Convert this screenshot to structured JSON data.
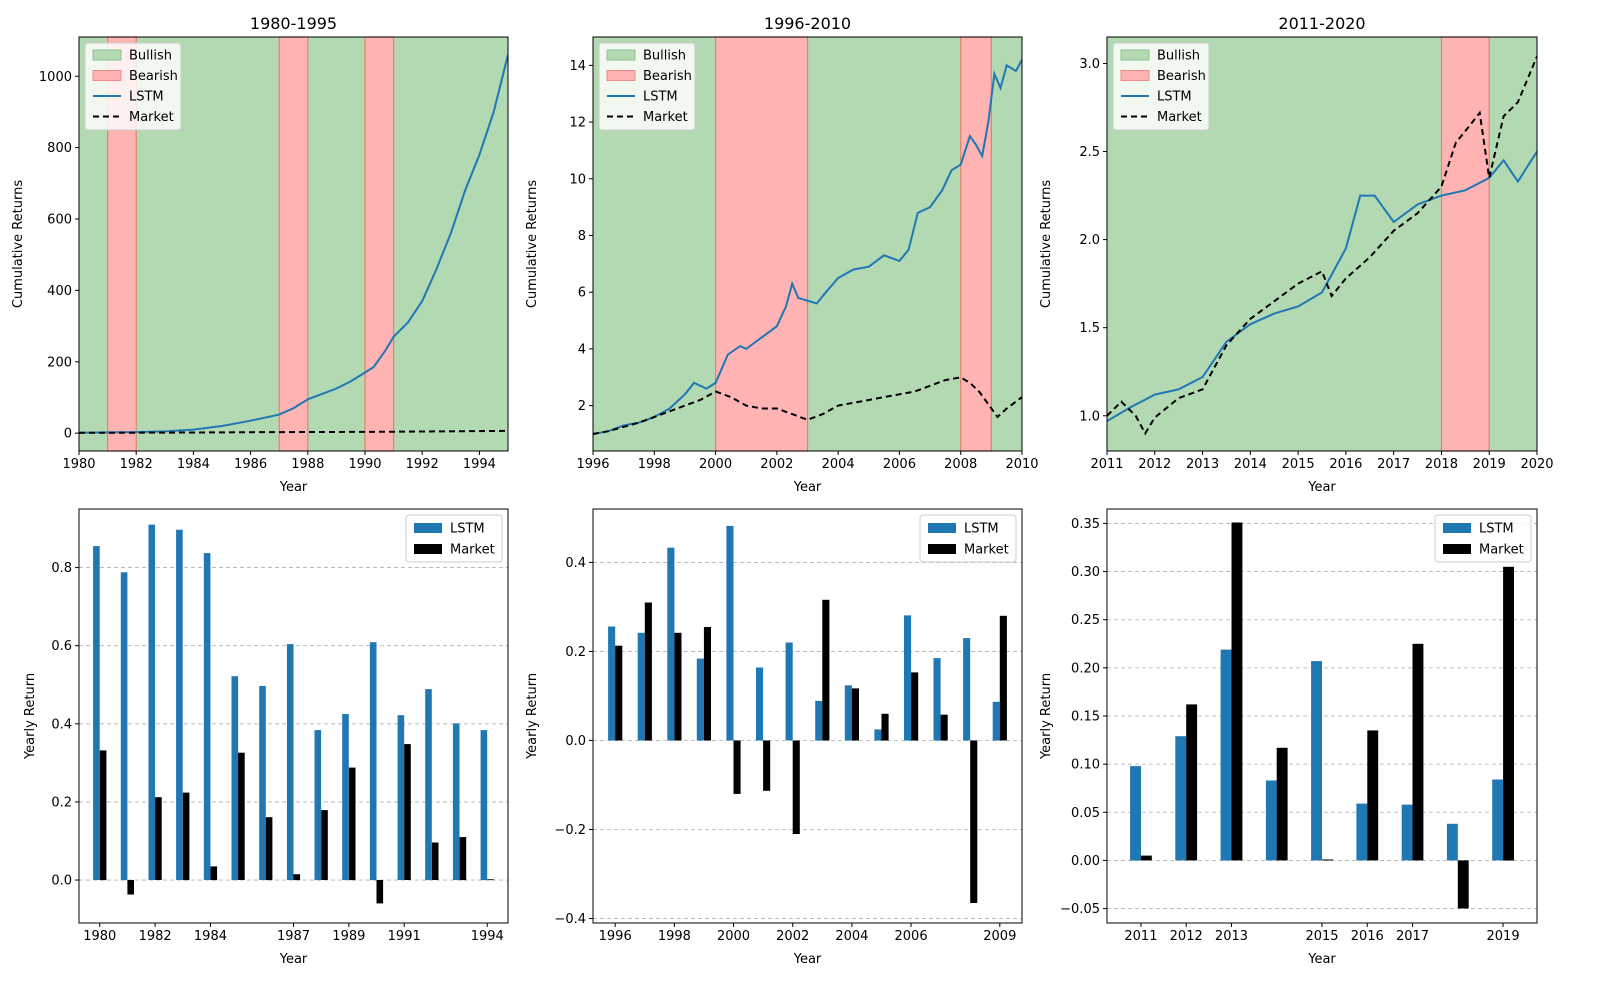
{
  "chart_data": [
    {
      "type": "line",
      "title": "1980-1995",
      "xlabel": "Year",
      "ylabel": "Cumulative Returns",
      "xlim": [
        1980,
        1995
      ],
      "ylim": [
        -50,
        1110
      ],
      "xticks": [
        1980,
        1982,
        1984,
        1986,
        1988,
        1990,
        1992,
        1994
      ],
      "yticks": [
        0,
        200,
        400,
        600,
        800,
        1000
      ],
      "legend": {
        "position": "top-left",
        "entries": [
          "Bullish",
          "Bearish",
          "LSTM",
          "Market"
        ]
      },
      "regimes": {
        "bullish": [
          [
            1980,
            1981
          ],
          [
            1982,
            1987
          ],
          [
            1988,
            1990
          ],
          [
            1991,
            1995
          ]
        ],
        "bearish": [
          [
            1981,
            1982
          ],
          [
            1987,
            1988
          ],
          [
            1990,
            1991
          ]
        ]
      },
      "colors": {
        "bullish": "#b3d9b3",
        "bearish": "#ffb3b3",
        "lstm": "#1f77b4",
        "market": "#000000"
      },
      "series": [
        {
          "name": "LSTM",
          "style": "solid",
          "x": [
            1980,
            1981,
            1982,
            1983,
            1984,
            1985,
            1986,
            1987,
            1987.5,
            1988,
            1988.5,
            1989,
            1989.5,
            1990,
            1990.3,
            1990.7,
            1991,
            1991.5,
            1992,
            1992.5,
            1993,
            1993.5,
            1994,
            1994.5,
            1995
          ],
          "y": [
            1,
            2,
            3,
            5,
            10,
            20,
            35,
            52,
            70,
            95,
            110,
            125,
            145,
            170,
            185,
            230,
            270,
            310,
            370,
            460,
            560,
            680,
            780,
            900,
            1060
          ]
        },
        {
          "name": "Market",
          "style": "dashed",
          "x": [
            1980,
            1982,
            1984,
            1986,
            1988,
            1990,
            1992,
            1994,
            1995
          ],
          "y": [
            1,
            1.3,
            1.8,
            2.6,
            3.2,
            3.6,
            4.5,
            5.8,
            6.4
          ]
        }
      ]
    },
    {
      "type": "line",
      "title": "1996-2010",
      "xlabel": "Year",
      "ylabel": "Cumulative Returns",
      "xlim": [
        1996,
        2010
      ],
      "ylim": [
        0.4,
        15.0
      ],
      "xticks": [
        1996,
        1998,
        2000,
        2002,
        2004,
        2006,
        2008,
        2010
      ],
      "yticks": [
        2,
        4,
        6,
        8,
        10,
        12,
        14
      ],
      "legend": {
        "position": "top-left",
        "entries": [
          "Bullish",
          "Bearish",
          "LSTM",
          "Market"
        ]
      },
      "regimes": {
        "bullish": [
          [
            1996,
            2000
          ],
          [
            2003,
            2008
          ],
          [
            2009,
            2010
          ]
        ],
        "bearish": [
          [
            2000,
            2003
          ],
          [
            2008,
            2009
          ]
        ]
      },
      "series": [
        {
          "name": "LSTM",
          "style": "solid",
          "x": [
            1996,
            1996.5,
            1997,
            1997.5,
            1998,
            1998.5,
            1999,
            1999.3,
            1999.7,
            2000,
            2000.4,
            2000.8,
            2001,
            2001.5,
            2002,
            2002.3,
            2002.5,
            2002.7,
            2003,
            2003.3,
            2003.6,
            2004,
            2004.5,
            2005,
            2005.5,
            2006,
            2006.3,
            2006.6,
            2007,
            2007.4,
            2007.7,
            2008,
            2008.3,
            2008.5,
            2008.7,
            2008.9,
            2009.1,
            2009.3,
            2009.5,
            2009.8,
            2010
          ],
          "y": [
            1,
            1.1,
            1.3,
            1.4,
            1.6,
            1.9,
            2.4,
            2.8,
            2.6,
            2.8,
            3.8,
            4.1,
            4.0,
            4.4,
            4.8,
            5.5,
            6.3,
            5.8,
            5.7,
            5.6,
            6.0,
            6.5,
            6.8,
            6.9,
            7.3,
            7.1,
            7.5,
            8.8,
            9.0,
            9.6,
            10.3,
            10.5,
            11.5,
            11.2,
            10.8,
            12.0,
            13.7,
            13.2,
            14.0,
            13.8,
            14.2
          ]
        },
        {
          "name": "Market",
          "style": "dashed",
          "x": [
            1996,
            1996.5,
            1997,
            1997.5,
            1998,
            1998.5,
            1999,
            1999.5,
            2000,
            2000.5,
            2001,
            2001.5,
            2002,
            2002.5,
            2003,
            2003.5,
            2004,
            2004.5,
            2005,
            2005.5,
            2006,
            2006.5,
            2007,
            2007.5,
            2008,
            2008.3,
            2008.6,
            2009,
            2009.2,
            2009.5,
            2010
          ],
          "y": [
            1,
            1.1,
            1.25,
            1.4,
            1.6,
            1.8,
            2.0,
            2.2,
            2.5,
            2.3,
            2.0,
            1.9,
            1.9,
            1.7,
            1.5,
            1.7,
            2.0,
            2.1,
            2.2,
            2.3,
            2.4,
            2.5,
            2.7,
            2.9,
            3.0,
            2.8,
            2.5,
            1.9,
            1.6,
            1.9,
            2.3
          ]
        }
      ]
    },
    {
      "type": "line",
      "title": "2011-2020",
      "xlabel": "Year",
      "ylabel": "Cumulative Returns",
      "xlim": [
        2011,
        2020
      ],
      "ylim": [
        0.8,
        3.15
      ],
      "xticks": [
        2011,
        2012,
        2013,
        2014,
        2015,
        2016,
        2017,
        2018,
        2019,
        2020
      ],
      "yticks": [
        1.0,
        1.5,
        2.0,
        2.5,
        3.0
      ],
      "legend": {
        "position": "top-left",
        "entries": [
          "Bullish",
          "Bearish",
          "LSTM",
          "Market"
        ]
      },
      "regimes": {
        "bullish": [
          [
            2011,
            2018
          ],
          [
            2019,
            2020
          ]
        ],
        "bearish": [
          [
            2018,
            2019
          ]
        ]
      },
      "series": [
        {
          "name": "LSTM",
          "style": "solid",
          "x": [
            2011,
            2011.5,
            2012,
            2012.5,
            2013,
            2013.5,
            2014,
            2014.5,
            2015,
            2015.5,
            2016,
            2016.3,
            2016.6,
            2017,
            2017.5,
            2018,
            2018.5,
            2019,
            2019.3,
            2019.6,
            2020
          ],
          "y": [
            0.97,
            1.05,
            1.12,
            1.15,
            1.22,
            1.42,
            1.52,
            1.58,
            1.62,
            1.7,
            1.95,
            2.25,
            2.25,
            2.1,
            2.2,
            2.25,
            2.28,
            2.35,
            2.45,
            2.33,
            2.5
          ]
        },
        {
          "name": "Market",
          "style": "dashed",
          "x": [
            2011,
            2011.3,
            2011.6,
            2011.8,
            2012,
            2012.5,
            2013,
            2013.5,
            2014,
            2014.5,
            2015,
            2015.5,
            2015.7,
            2016,
            2016.5,
            2017,
            2017.5,
            2018,
            2018.3,
            2018.6,
            2018.8,
            2019,
            2019.3,
            2019.6,
            2020
          ],
          "y": [
            1.0,
            1.08,
            1.0,
            0.9,
            0.99,
            1.1,
            1.15,
            1.4,
            1.55,
            1.65,
            1.75,
            1.82,
            1.68,
            1.78,
            1.9,
            2.05,
            2.15,
            2.3,
            2.55,
            2.65,
            2.72,
            2.35,
            2.7,
            2.78,
            3.04
          ]
        }
      ]
    },
    {
      "type": "bar",
      "xlabel": "Year",
      "ylabel": "Yearly Return",
      "ylim": [
        -0.11,
        0.95
      ],
      "yticks": [
        0.0,
        0.2,
        0.4,
        0.6,
        0.8
      ],
      "legend": {
        "position": "top-right",
        "entries": [
          "LSTM",
          "Market"
        ]
      },
      "categories": [
        1980,
        1981,
        1982,
        1983,
        1984,
        1985,
        1986,
        1987,
        1988,
        1989,
        1990,
        1991,
        1992,
        1993,
        1994
      ],
      "tick_labels": {
        "1980": "1980",
        "1982": "1982",
        "1984": "1984",
        "1987": "1987",
        "1989": "1989",
        "1991": "1991",
        "1994": "1994"
      },
      "series": [
        {
          "name": "LSTM",
          "color": "#1f77b4",
          "values": [
            0.855,
            0.788,
            0.91,
            0.897,
            0.837,
            0.522,
            0.497,
            0.604,
            0.384,
            0.425,
            0.609,
            0.422,
            0.489,
            0.401,
            0.384
          ]
        },
        {
          "name": "Market",
          "color": "#000000",
          "values": [
            0.332,
            -0.037,
            0.212,
            0.224,
            0.035,
            0.326,
            0.161,
            0.015,
            0.179,
            0.288,
            -0.06,
            0.348,
            0.096,
            0.11,
            0.002
          ]
        }
      ]
    },
    {
      "type": "bar",
      "xlabel": "Year",
      "ylabel": "Yearly Return",
      "ylim": [
        -0.41,
        0.52
      ],
      "yticks": [
        -0.4,
        -0.2,
        0.0,
        0.2,
        0.4
      ],
      "legend": {
        "position": "top-right",
        "entries": [
          "LSTM",
          "Market"
        ]
      },
      "categories": [
        1996,
        1997,
        1998,
        1999,
        2000,
        2001,
        2002,
        2003,
        2004,
        2005,
        2006,
        2007,
        2008,
        2009
      ],
      "tick_labels": {
        "1996": "1996",
        "1998": "1998",
        "2000": "2000",
        "2002": "2002",
        "2004": "2004",
        "2006": "2006",
        "2009": "2009"
      },
      "series": [
        {
          "name": "LSTM",
          "color": "#1f77b4",
          "values": [
            0.256,
            0.242,
            0.433,
            0.184,
            0.482,
            0.164,
            0.22,
            0.089,
            0.124,
            0.025,
            0.281,
            0.185,
            0.23,
            0.087
          ]
        },
        {
          "name": "Market",
          "color": "#000000",
          "values": [
            0.213,
            0.31,
            0.242,
            0.255,
            -0.12,
            -0.113,
            -0.21,
            0.316,
            0.117,
            0.06,
            0.153,
            0.058,
            -0.365,
            0.28
          ]
        }
      ]
    },
    {
      "type": "bar",
      "xlabel": "Year",
      "ylabel": "Yearly Return",
      "ylim": [
        -0.065,
        0.365
      ],
      "yticks": [
        -0.05,
        0.0,
        0.05,
        0.1,
        0.15,
        0.2,
        0.25,
        0.3,
        0.35
      ],
      "ytick_labels": [
        "−0.05",
        "0.00",
        "0.05",
        "0.10",
        "0.15",
        "0.20",
        "0.25",
        "0.30",
        "0.35"
      ],
      "legend": {
        "position": "top-right",
        "entries": [
          "LSTM",
          "Market"
        ]
      },
      "categories": [
        2011,
        2012,
        2013,
        2014,
        2015,
        2016,
        2017,
        2018,
        2019
      ],
      "tick_labels": {
        "2011": "2011",
        "2012": "2012",
        "2013": "2013",
        "2015": "2015",
        "2016": "2016",
        "2017": "2017",
        "2019": "2019"
      },
      "series": [
        {
          "name": "LSTM",
          "color": "#1f77b4",
          "values": [
            0.098,
            0.129,
            0.219,
            0.083,
            0.207,
            0.059,
            0.058,
            0.038,
            0.084
          ]
        },
        {
          "name": "Market",
          "color": "#000000",
          "values": [
            0.005,
            0.162,
            0.351,
            0.117,
            0.001,
            0.135,
            0.225,
            -0.05,
            0.305
          ]
        }
      ]
    }
  ]
}
